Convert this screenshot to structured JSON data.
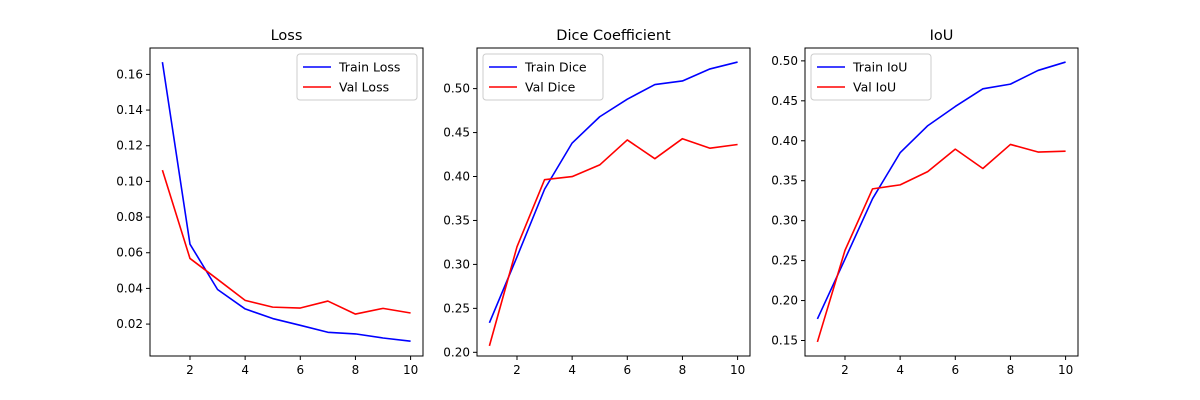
{
  "chart_data": [
    {
      "type": "line",
      "title": "Loss",
      "xlabel": "",
      "ylabel": "",
      "x": [
        1,
        2,
        3,
        4,
        5,
        6,
        7,
        8,
        9,
        10
      ],
      "xlim": [
        0.55,
        10.45
      ],
      "ylim": [
        0.0021,
        0.1748
      ],
      "xticks": [
        2,
        4,
        6,
        8,
        10
      ],
      "yticks": [
        0.02,
        0.04,
        0.06,
        0.08,
        0.1,
        0.12,
        0.14,
        0.16
      ],
      "ytick_labels": [
        "0.02",
        "0.04",
        "0.06",
        "0.08",
        "0.10",
        "0.12",
        "0.14",
        "0.16"
      ],
      "grid": false,
      "legend_position": "top-right",
      "series": [
        {
          "name": "Train Loss",
          "color": "#0000ff",
          "values": [
            0.1669,
            0.0648,
            0.0394,
            0.0285,
            0.0231,
            0.0193,
            0.0154,
            0.0145,
            0.0122,
            0.0104
          ]
        },
        {
          "name": "Val Loss",
          "color": "#ff0000",
          "values": [
            0.1063,
            0.0568,
            0.0451,
            0.0333,
            0.0295,
            0.029,
            0.0329,
            0.0256,
            0.0288,
            0.0262
          ]
        }
      ]
    },
    {
      "type": "line",
      "title": "Dice Coefficient",
      "xlabel": "",
      "ylabel": "",
      "x": [
        1,
        2,
        3,
        4,
        5,
        6,
        7,
        8,
        9,
        10
      ],
      "xlim": [
        0.55,
        10.45
      ],
      "ylim": [
        0.1958,
        0.5462
      ],
      "xticks": [
        2,
        4,
        6,
        8,
        10
      ],
      "yticks": [
        0.2,
        0.25,
        0.3,
        0.35,
        0.4,
        0.45,
        0.5
      ],
      "ytick_labels": [
        "0.20",
        "0.25",
        "0.30",
        "0.35",
        "0.40",
        "0.45",
        "0.50"
      ],
      "grid": false,
      "legend_position": "top-left",
      "series": [
        {
          "name": "Train Dice",
          "color": "#0000ff",
          "values": [
            0.2336,
            0.3085,
            0.3855,
            0.4381,
            0.468,
            0.488,
            0.5046,
            0.5087,
            0.5224,
            0.5302
          ]
        },
        {
          "name": "Val Dice",
          "color": "#ff0000",
          "values": [
            0.2073,
            0.32,
            0.3964,
            0.3999,
            0.4132,
            0.4416,
            0.4203,
            0.443,
            0.4322,
            0.4364
          ]
        }
      ]
    },
    {
      "type": "line",
      "title": "IoU",
      "xlabel": "",
      "ylabel": "",
      "x": [
        1,
        2,
        3,
        4,
        5,
        6,
        7,
        8,
        9,
        10
      ],
      "xlim": [
        0.55,
        10.45
      ],
      "ylim": [
        0.1306,
        0.5161
      ],
      "xticks": [
        2,
        4,
        6,
        8,
        10
      ],
      "yticks": [
        0.15,
        0.2,
        0.25,
        0.3,
        0.35,
        0.4,
        0.45,
        0.5
      ],
      "ytick_labels": [
        "0.15",
        "0.20",
        "0.25",
        "0.30",
        "0.35",
        "0.40",
        "0.45",
        "0.50"
      ],
      "grid": false,
      "legend_position": "top-left",
      "series": [
        {
          "name": "Train IoU",
          "color": "#0000ff",
          "values": [
            0.177,
            0.2518,
            0.3275,
            0.385,
            0.4188,
            0.4429,
            0.465,
            0.4709,
            0.488,
            0.4985
          ]
        },
        {
          "name": "Val IoU",
          "color": "#ff0000",
          "values": [
            0.1482,
            0.2628,
            0.3398,
            0.3448,
            0.3614,
            0.3895,
            0.3653,
            0.3954,
            0.3859,
            0.387
          ]
        }
      ]
    }
  ]
}
